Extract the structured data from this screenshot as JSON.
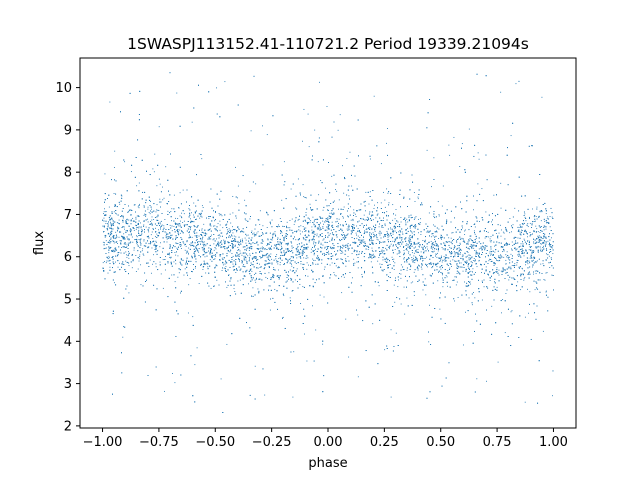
{
  "chart_data": {
    "type": "scatter",
    "title": "1SWASPJ113152.41-110721.2 Period 19339.21094s",
    "xlabel": "phase",
    "ylabel": "flux",
    "xlim": [
      -1.1,
      1.1
    ],
    "ylim": [
      1.95,
      10.7
    ],
    "xticks": [
      -1.0,
      -0.75,
      -0.5,
      -0.25,
      0.0,
      0.25,
      0.5,
      0.75,
      1.0
    ],
    "xtick_labels": [
      "−1.00",
      "−0.75",
      "−0.50",
      "−0.25",
      "0.00",
      "0.25",
      "0.50",
      "0.75",
      "1.00"
    ],
    "yticks": [
      2,
      3,
      4,
      5,
      6,
      7,
      8,
      9,
      10
    ],
    "ytick_labels": [
      "2",
      "3",
      "4",
      "5",
      "6",
      "7",
      "8",
      "9",
      "10"
    ],
    "grid": false,
    "marker_color": "#1f77b4",
    "series": [
      {
        "x_range": [
          -1.0,
          1.0
        ],
        "y_range": [
          2.3,
          10.4
        ],
        "trend_phase": [
          -1.0,
          -0.75,
          -0.5,
          -0.25,
          0.0,
          0.25,
          0.5,
          0.75,
          1.0
        ],
        "trend_flux": [
          6.5,
          6.6,
          6.25,
          6.05,
          6.45,
          6.5,
          6.05,
          6.05,
          6.3
        ]
      }
    ]
  }
}
